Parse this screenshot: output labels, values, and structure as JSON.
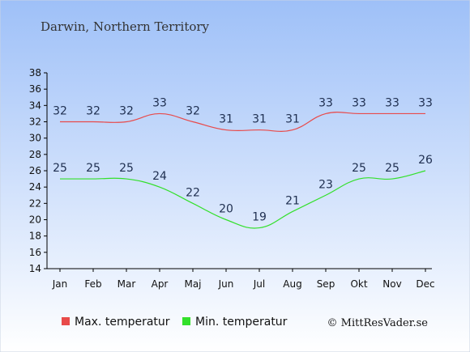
{
  "chart_data": {
    "type": "line",
    "title": "Darwin, Northern Territory",
    "categories": [
      "Jan",
      "Feb",
      "Mar",
      "Apr",
      "Maj",
      "Jun",
      "Jul",
      "Aug",
      "Sep",
      "Okt",
      "Nov",
      "Dec"
    ],
    "series": [
      {
        "name": "Max. temperatur",
        "color": "#e84a4a",
        "values": [
          32,
          32,
          32,
          33,
          32,
          31,
          31,
          31,
          33,
          33,
          33,
          33
        ]
      },
      {
        "name": "Min. temperatur",
        "color": "#33e02b",
        "values": [
          25,
          25,
          25,
          24,
          22,
          20,
          19,
          21,
          23,
          25,
          25,
          26
        ]
      }
    ],
    "ylim": [
      14,
      38
    ],
    "yticks": [
      14,
      16,
      18,
      20,
      22,
      24,
      26,
      28,
      30,
      32,
      34,
      36,
      38
    ],
    "grid": false,
    "legend": "bottom",
    "credit": "© MittResVader.se",
    "background_top": "#9ec0f8",
    "background_bottom": "#ffffff"
  }
}
